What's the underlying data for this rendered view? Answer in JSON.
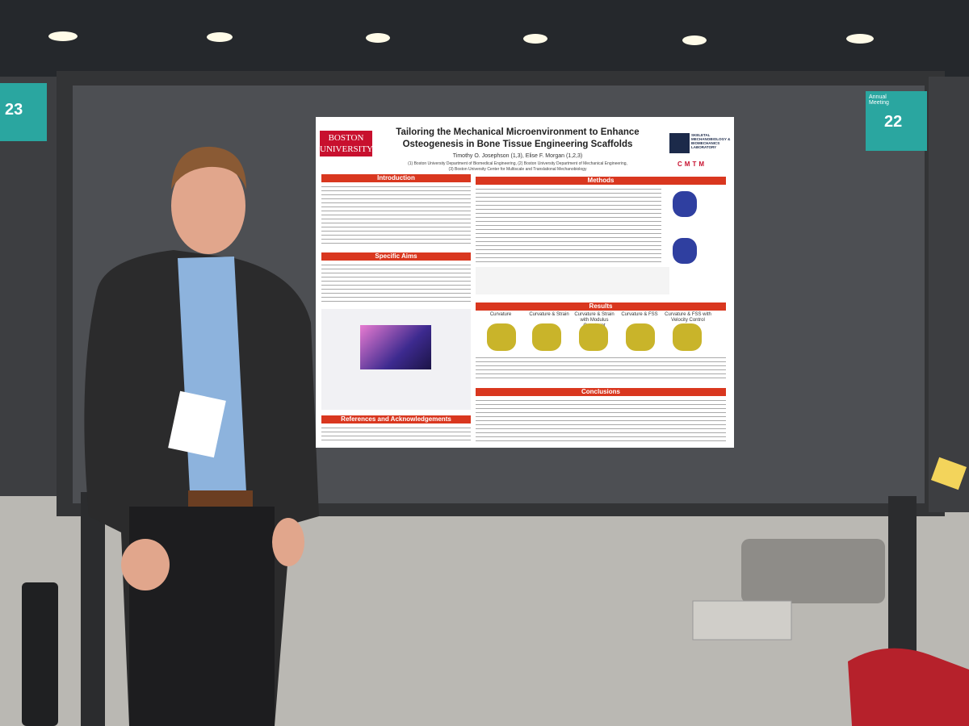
{
  "booths": {
    "left": {
      "number": "23"
    },
    "right": {
      "caption": "Annual Meeting",
      "number": "22"
    }
  },
  "poster": {
    "logo": "BOSTON UNIVERSITY",
    "title": "Tailoring the Mechanical Microenvironment to Enhance Osteogenesis in Bone Tissue Engineering Scaffolds",
    "authors": "Timothy O. Josephson (1,3), Elise F. Morgan (1,2,3)",
    "affiliations": [
      "(1) Boston University Department of Biomedical Engineering, (2) Boston University Department of Mechanical Engineering,",
      "(3) Boston University Center for Multiscale and Translational Mechanobiology"
    ],
    "lab": "SKELETAL MECHANOBIOLOGY & BIOMECHANICS LABORATORY",
    "center": "CMTM",
    "sections": {
      "introduction": "Introduction",
      "specific_aims": "Specific Aims",
      "references": "References and Acknowledgements",
      "methods": "Methods",
      "results": "Results",
      "conclusions": "Conclusions"
    },
    "results_columns": [
      "Curvature",
      "Curvature & Strain",
      "Curvature & Strain with Modulus Constraint",
      "Curvature & FSS",
      "Curvature & FSS with Velocity Control"
    ]
  }
}
